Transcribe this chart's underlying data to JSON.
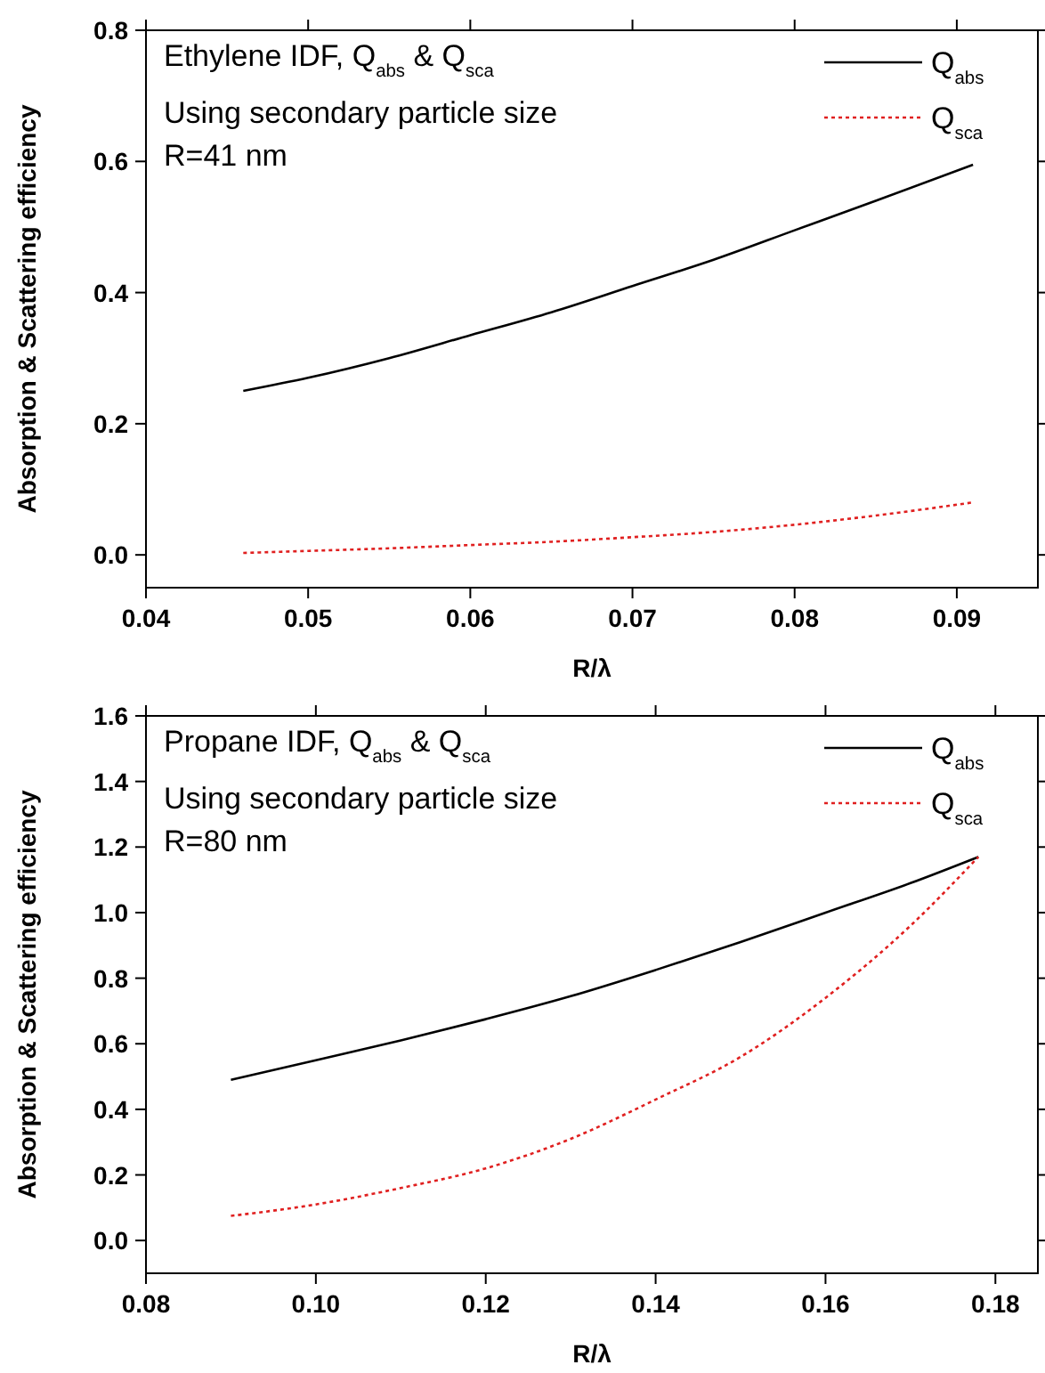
{
  "chart_data": [
    {
      "type": "line",
      "xlabel": "R/λ",
      "ylabel": "Absorption & Scattering efficiency",
      "annotations": [
        "Ethylene IDF, Q$_{abs}$ & Q$_{sca}$",
        "Using secondary particle size",
        "R=41 nm"
      ],
      "xlim": [
        0.04,
        0.095
      ],
      "xticks": [
        {
          "value": 0.04,
          "label": "0.04"
        },
        {
          "value": 0.05,
          "label": "0.05"
        },
        {
          "value": 0.06,
          "label": "0.06"
        },
        {
          "value": 0.07,
          "label": "0.07"
        },
        {
          "value": 0.08,
          "label": "0.08"
        },
        {
          "value": 0.09,
          "label": "0.09"
        }
      ],
      "ylim": [
        -0.05,
        0.8
      ],
      "yticks": [
        {
          "value": 0,
          "label": "0.0"
        },
        {
          "value": 0.2,
          "label": "0.2"
        },
        {
          "value": 0.4,
          "label": "0.4"
        },
        {
          "value": 0.6,
          "label": "0.6"
        },
        {
          "value": 0.8,
          "label": "0.8"
        }
      ],
      "legend": "top right",
      "grid": false,
      "series": [
        {
          "name": "Q$_{abs}$",
          "color": "#000000",
          "line_style": "solid",
          "x": [
            0.046,
            0.05,
            0.055,
            0.06,
            0.065,
            0.07,
            0.075,
            0.08,
            0.085,
            0.091
          ],
          "values": [
            0.25,
            0.27,
            0.3,
            0.335,
            0.37,
            0.41,
            0.45,
            0.495,
            0.54,
            0.595
          ]
        },
        {
          "name": "Q$_{sca}$",
          "color": "#e02020",
          "line_style": "dotted",
          "x": [
            0.046,
            0.05,
            0.055,
            0.06,
            0.065,
            0.07,
            0.075,
            0.08,
            0.085,
            0.091
          ],
          "values": [
            0.003,
            0.006,
            0.01,
            0.015,
            0.02,
            0.027,
            0.035,
            0.046,
            0.06,
            0.08
          ]
        }
      ]
    },
    {
      "type": "line",
      "xlabel": "R/λ",
      "ylabel": "Absorption & Scattering efficiency",
      "annotations": [
        "Propane IDF, Q$_{abs}$ & Q$_{sca}$",
        "Using secondary particle size",
        "R=80 nm"
      ],
      "xlim": [
        0.08,
        0.185
      ],
      "xticks": [
        {
          "value": 0.08,
          "label": "0.08"
        },
        {
          "value": 0.1,
          "label": "0.10"
        },
        {
          "value": 0.12,
          "label": "0.12"
        },
        {
          "value": 0.14,
          "label": "0.14"
        },
        {
          "value": 0.16,
          "label": "0.16"
        },
        {
          "value": 0.18,
          "label": "0.18"
        }
      ],
      "ylim": [
        -0.1,
        1.6
      ],
      "yticks": [
        {
          "value": 0,
          "label": "0.0"
        },
        {
          "value": 0.2,
          "label": "0.2"
        },
        {
          "value": 0.4,
          "label": "0.4"
        },
        {
          "value": 0.6,
          "label": "0.6"
        },
        {
          "value": 0.8,
          "label": "0.8"
        },
        {
          "value": 1,
          "label": "1.0"
        },
        {
          "value": 1.2,
          "label": "1.2"
        },
        {
          "value": 1.4,
          "label": "1.4"
        },
        {
          "value": 1.6,
          "label": "1.6"
        }
      ],
      "legend": "top right",
      "grid": false,
      "series": [
        {
          "name": "Q$_{abs}$",
          "color": "#000000",
          "line_style": "solid",
          "x": [
            0.09,
            0.1,
            0.11,
            0.12,
            0.13,
            0.14,
            0.15,
            0.16,
            0.17,
            0.178
          ],
          "values": [
            0.49,
            0.55,
            0.61,
            0.675,
            0.745,
            0.825,
            0.91,
            1.0,
            1.09,
            1.17
          ]
        },
        {
          "name": "Q$_{sca}$",
          "color": "#e02020",
          "line_style": "dotted",
          "x": [
            0.09,
            0.1,
            0.11,
            0.12,
            0.13,
            0.14,
            0.15,
            0.16,
            0.17,
            0.178
          ],
          "values": [
            0.075,
            0.11,
            0.16,
            0.22,
            0.31,
            0.43,
            0.56,
            0.74,
            0.96,
            1.17
          ]
        }
      ]
    }
  ]
}
